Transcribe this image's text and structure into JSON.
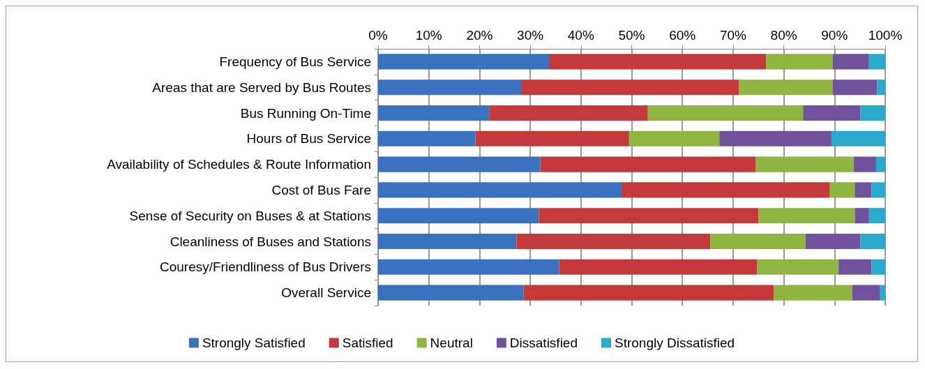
{
  "chart_data": {
    "type": "bar",
    "orientation": "horizontal",
    "stacked": true,
    "categories": [
      "Frequency of Bus Service",
      "Areas that are Served by Bus Routes",
      "Bus Running On-Time",
      "Hours of Bus Service",
      "Availability of Schedules & Route Information",
      "Cost of Bus Fare",
      "Sense of Security on Buses & at Stations",
      "Cleanliness of Buses and Stations",
      "Couresy/Friendliness of Bus Drivers",
      "Overall Service"
    ],
    "series": [
      {
        "name": "Strongly Satisfied",
        "color": "#3a72c0",
        "values": [
          33.7,
          28.2,
          21.9,
          19.2,
          32.0,
          48.0,
          31.7,
          27.3,
          35.7,
          28.7
        ]
      },
      {
        "name": "Satisfied",
        "color": "#c43a3a",
        "values": [
          42.8,
          43.0,
          31.3,
          30.3,
          42.5,
          41.1,
          43.3,
          38.2,
          39.0,
          49.3
        ]
      },
      {
        "name": "Neutral",
        "color": "#8fb440",
        "values": [
          13.1,
          18.4,
          30.6,
          17.8,
          19.3,
          4.9,
          19.0,
          18.8,
          16.1,
          15.5
        ]
      },
      {
        "name": "Dissatisfied",
        "color": "#6f519c",
        "values": [
          7.2,
          8.8,
          11.3,
          22.1,
          4.4,
          3.3,
          2.7,
          10.8,
          6.5,
          5.4
        ]
      },
      {
        "name": "Strongly Dissatisfied",
        "color": "#2ba9cc",
        "values": [
          3.2,
          1.6,
          4.9,
          10.6,
          1.8,
          2.7,
          3.3,
          4.9,
          2.7,
          1.1
        ]
      }
    ],
    "xlim": [
      0,
      100
    ],
    "xticks": [
      {
        "value": 0,
        "label": "0%"
      },
      {
        "value": 10,
        "label": "10%"
      },
      {
        "value": 20,
        "label": "20%"
      },
      {
        "value": 30,
        "label": "30%"
      },
      {
        "value": 40,
        "label": "40%"
      },
      {
        "value": 50,
        "label": "50%"
      },
      {
        "value": 60,
        "label": "60%"
      },
      {
        "value": 70,
        "label": "70%"
      },
      {
        "value": 80,
        "label": "80%"
      },
      {
        "value": 90,
        "label": "90%"
      },
      {
        "value": 100,
        "label": "100%"
      }
    ],
    "grid": "x",
    "legend": "bottom"
  }
}
